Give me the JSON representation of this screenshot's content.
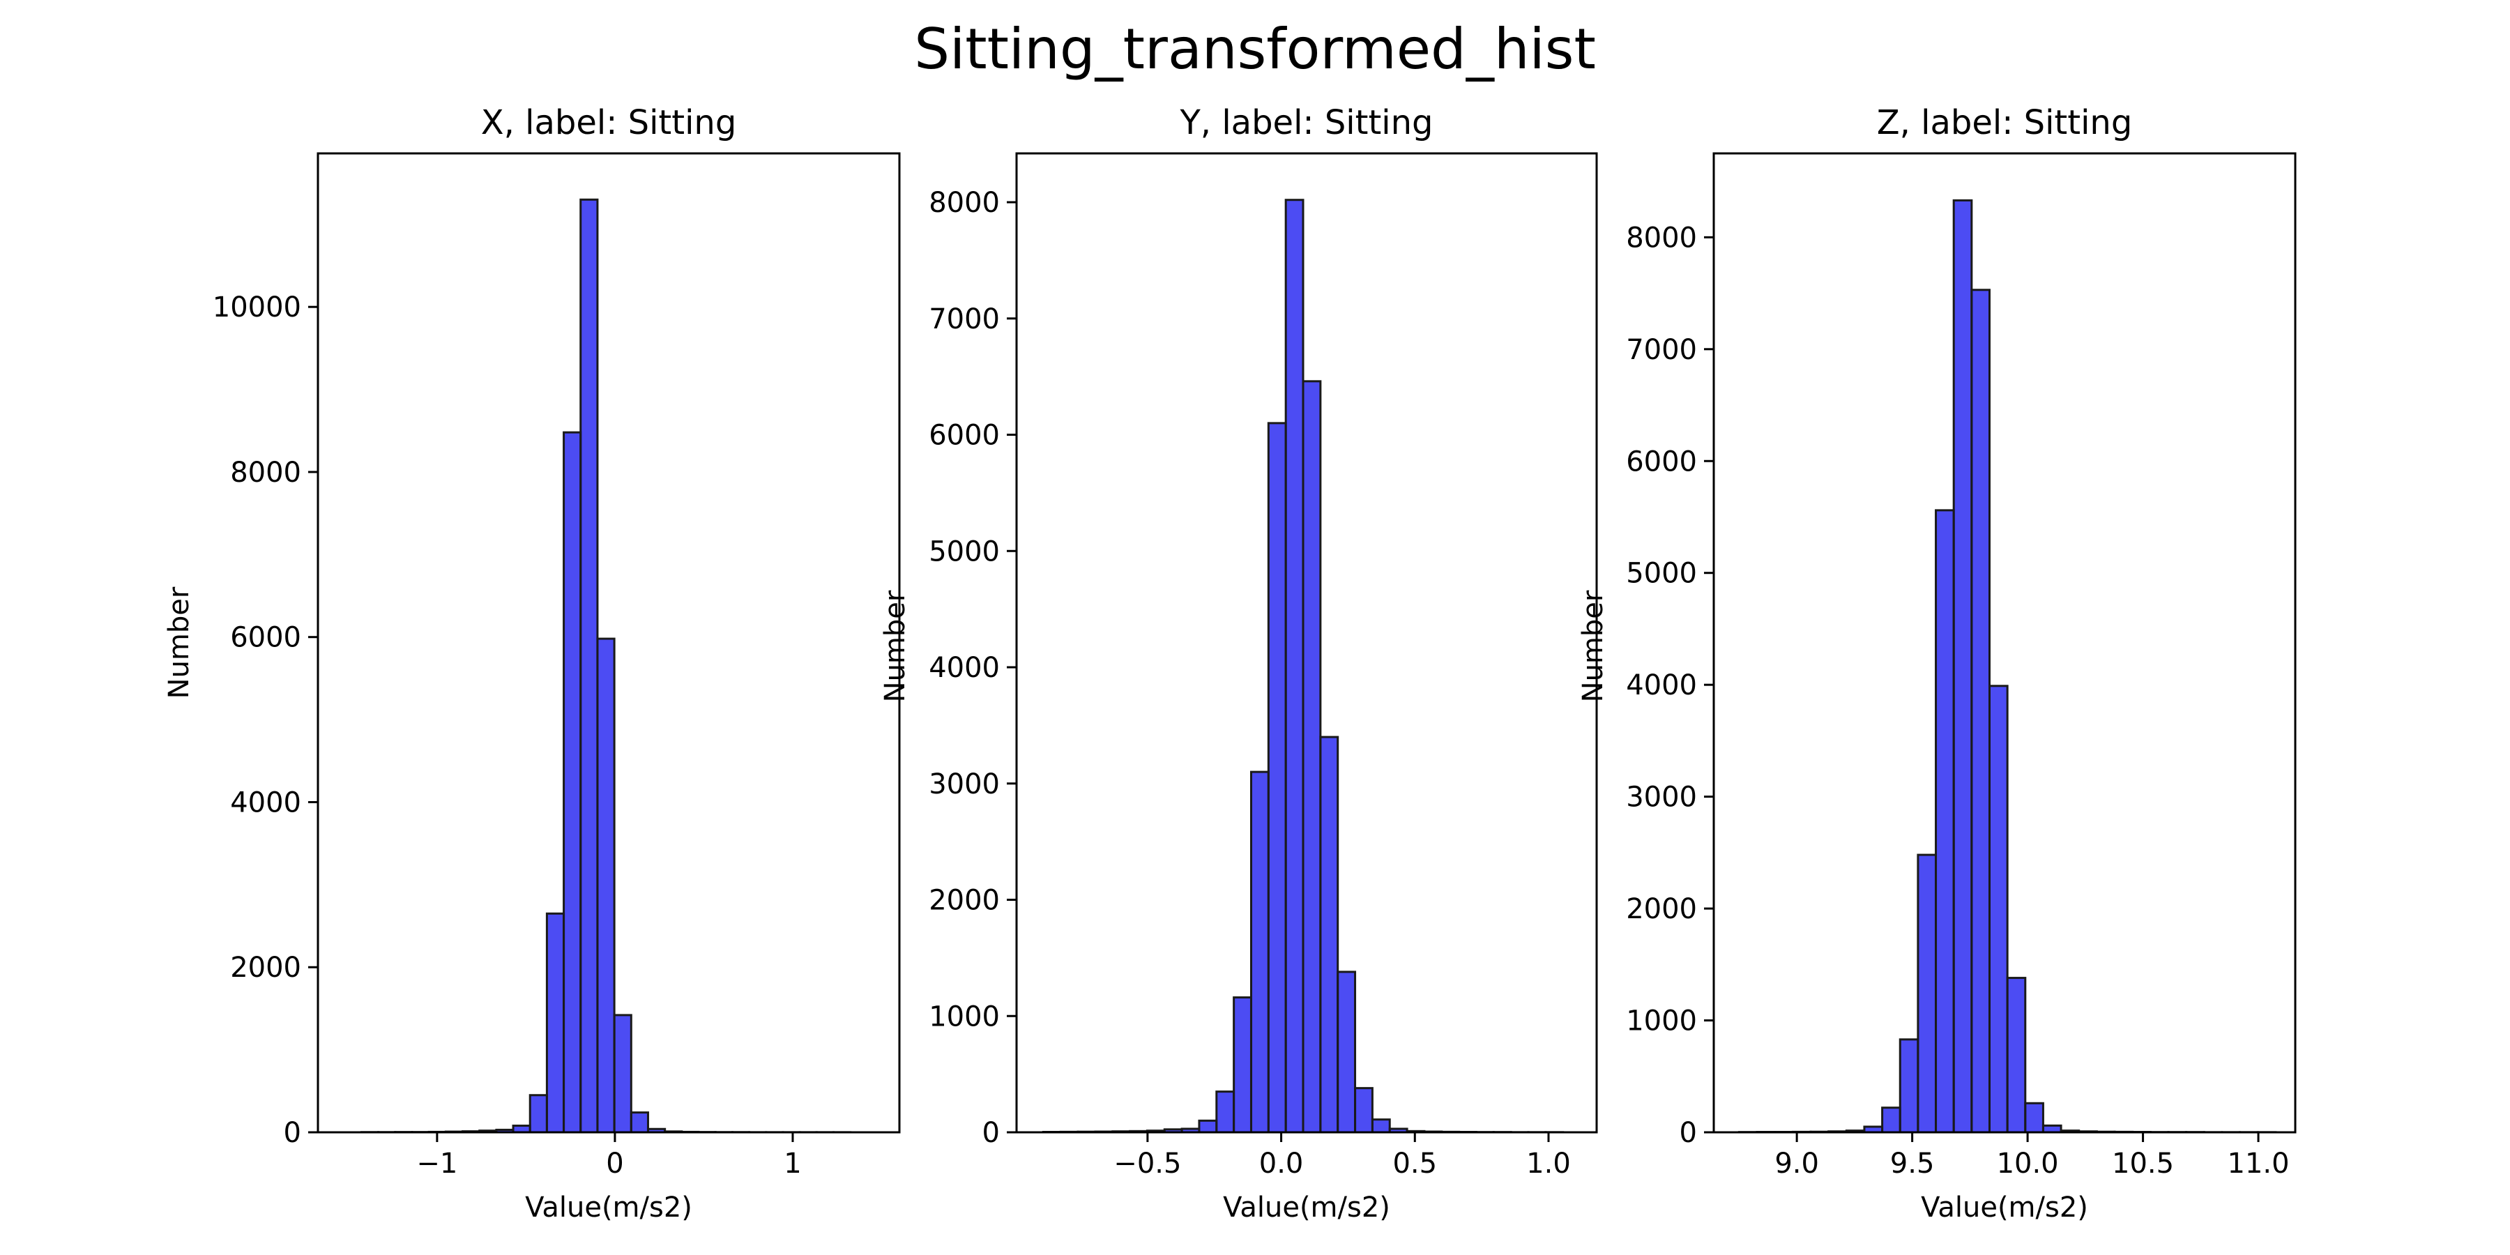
{
  "chart_data": {
    "title": "Sitting_transformed_hist",
    "panels": [
      {
        "type": "bar",
        "title": "X, label: Sitting",
        "xlabel": "Value(m/s2)",
        "ylabel": "Number",
        "xlim": [
          -1.67,
          1.6
        ],
        "ylim": [
          0,
          11860
        ],
        "xticks": [
          -1,
          0,
          1
        ],
        "xtick_labels": [
          "−1",
          "0",
          "1"
        ],
        "yticks": [
          0,
          2000,
          4000,
          6000,
          8000,
          10000
        ],
        "ytick_labels": [
          "0",
          "2000",
          "4000",
          "6000",
          "8000",
          "10000"
        ],
        "bin_start": -1.52,
        "bin_width": 0.0948,
        "bar_color": "#0000ee",
        "values": [
          0,
          2,
          2,
          3,
          3,
          5,
          8,
          12,
          20,
          30,
          80,
          450,
          2650,
          8480,
          11300,
          5980,
          1420,
          240,
          40,
          10,
          5,
          3,
          2,
          2,
          1,
          1,
          1,
          1,
          1,
          1
        ]
      },
      {
        "type": "bar",
        "title": "Y, label: Sitting",
        "xlabel": "Value(m/s2)",
        "ylabel": "Number",
        "xlim": [
          -0.99,
          1.18
        ],
        "ylim": [
          0,
          8420
        ],
        "xticks": [
          -0.5,
          0.0,
          0.5,
          1.0
        ],
        "xtick_labels": [
          "−0.5",
          "0.0",
          "0.5",
          "1.0"
        ],
        "yticks": [
          0,
          1000,
          2000,
          3000,
          4000,
          5000,
          6000,
          7000,
          8000
        ],
        "ytick_labels": [
          "0",
          "1000",
          "2000",
          "3000",
          "4000",
          "5000",
          "6000",
          "7000",
          "8000"
        ],
        "bin_start": -0.89,
        "bin_width": 0.0648,
        "bar_color": "#0000ee",
        "values": [
          3,
          4,
          5,
          6,
          8,
          10,
          14,
          25,
          30,
          100,
          350,
          1160,
          3100,
          6100,
          8020,
          6460,
          3400,
          1380,
          380,
          110,
          30,
          10,
          6,
          4,
          3,
          2,
          2,
          1,
          1,
          1
        ]
      },
      {
        "type": "bar",
        "title": "Z, label: Sitting",
        "xlabel": "Value(m/s2)",
        "ylabel": "Number",
        "xlim": [
          8.64,
          11.16
        ],
        "ylim": [
          0,
          8750
        ],
        "xticks": [
          9.0,
          9.5,
          10.0,
          10.5,
          11.0
        ],
        "xtick_labels": [
          "9.0",
          "9.5",
          "10.0",
          "10.5",
          "11.0"
        ],
        "yticks": [
          0,
          1000,
          2000,
          3000,
          4000,
          5000,
          6000,
          7000,
          8000
        ],
        "ytick_labels": [
          "0",
          "1000",
          "2000",
          "3000",
          "4000",
          "5000",
          "6000",
          "7000",
          "8000"
        ],
        "bin_start": 8.75,
        "bin_width": 0.0775,
        "bar_color": "#0000ee",
        "values": [
          2,
          3,
          3,
          4,
          5,
          8,
          15,
          50,
          220,
          830,
          2480,
          5560,
          8330,
          7530,
          3990,
          1380,
          260,
          60,
          15,
          8,
          5,
          4,
          3,
          2,
          2,
          2,
          1,
          1,
          1,
          1
        ]
      }
    ]
  }
}
